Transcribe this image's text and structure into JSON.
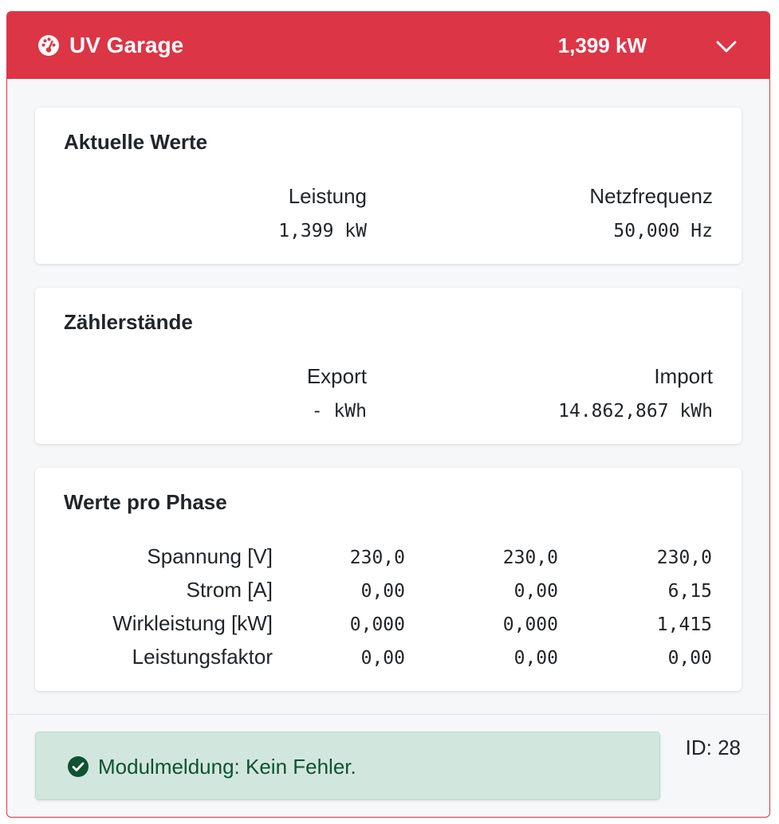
{
  "header": {
    "icon": "gauge-icon",
    "title": "UV Garage",
    "power": "1,399 kW",
    "toggle_icon": "chevron-down-icon",
    "color": "#dc3545"
  },
  "current": {
    "title": "Aktuelle Werte",
    "power_label": "Leistung",
    "power_value": "1,399 kW",
    "frequency_label": "Netzfrequenz",
    "frequency_value": "50,000 Hz"
  },
  "counters": {
    "title": "Zählerstände",
    "export_label": "Export",
    "export_value": "- kWh",
    "import_label": "Import",
    "import_value": "14.862,867 kWh"
  },
  "phases": {
    "title": "Werte pro Phase",
    "rows": [
      {
        "label": "Spannung [V]",
        "values": [
          "230,0",
          "230,0",
          "230,0"
        ]
      },
      {
        "label": "Strom [A]",
        "values": [
          "0,00",
          "0,00",
          "6,15"
        ]
      },
      {
        "label": "Wirkleistung [kW]",
        "values": [
          "0,000",
          "0,000",
          "1,415"
        ]
      },
      {
        "label": "Leistungsfaktor",
        "values": [
          "0,00",
          "0,00",
          "0,00"
        ]
      }
    ]
  },
  "footer": {
    "status_icon": "check-circle-icon",
    "status_message": "Modulmeldung: Kein Fehler.",
    "status_color": "#d1e7dd",
    "id_label": "ID: 28"
  }
}
